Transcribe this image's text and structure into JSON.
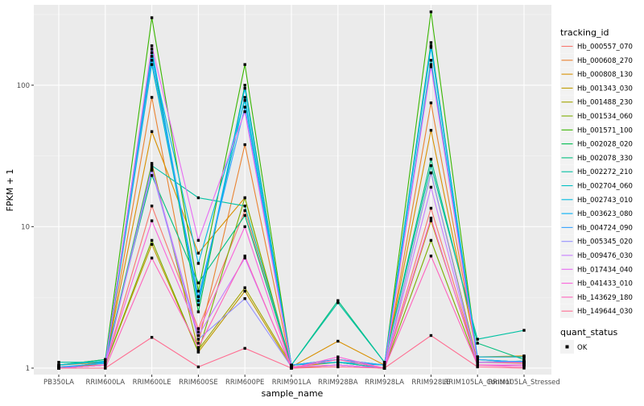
{
  "chart_data": {
    "type": "line",
    "xlabel": "sample_name",
    "ylabel": "FPKM + 1",
    "y_scale": "log10",
    "ylim": [
      0.9,
      370
    ],
    "y_ticks": [
      {
        "value": 1,
        "label": "1"
      },
      {
        "value": 10,
        "label": "10"
      },
      {
        "value": 100,
        "label": "100"
      }
    ],
    "grid": true,
    "panel_color": "#ebebeb",
    "categories": [
      "PB350LA",
      "RRIM600LA",
      "RRIM600LE",
      "RRIM600SE",
      "RRIM600PE",
      "RRIM901LA",
      "RRIM928BA",
      "RRIM928LA",
      "RRIM928LE",
      "RRIM105LA_Control",
      "RRIM105LA_Stressed"
    ],
    "legend": {
      "title": "tracking_id",
      "placement": "right",
      "quant_title": "quant_status",
      "quant_label": "OK"
    },
    "series": [
      {
        "name": "Hb_000557_070",
        "color": "#F8766D",
        "values": [
          1.0,
          1.05,
          14.0,
          1.9,
          13.0,
          1.0,
          1.05,
          1.0,
          13.5,
          1.1,
          1.08
        ]
      },
      {
        "name": "Hb_000608_270",
        "color": "#EA8331",
        "values": [
          1.02,
          1.05,
          82.0,
          1.5,
          38.0,
          1.0,
          1.05,
          1.0,
          75.0,
          1.2,
          1.2
        ]
      },
      {
        "name": "Hb_000808_130",
        "color": "#D89000",
        "values": [
          1.05,
          1.1,
          47.0,
          6.5,
          16.0,
          1.02,
          1.55,
          1.05,
          48.0,
          1.2,
          1.22
        ]
      },
      {
        "name": "Hb_001343_030",
        "color": "#C09B00",
        "values": [
          1.0,
          1.05,
          7.5,
          1.3,
          3.5,
          1.02,
          1.1,
          1.0,
          11.0,
          1.1,
          1.1
        ]
      },
      {
        "name": "Hb_001488_230",
        "color": "#A3A500",
        "values": [
          1.0,
          1.08,
          28.0,
          1.35,
          3.7,
          1.05,
          1.1,
          1.0,
          24.0,
          1.1,
          1.12
        ]
      },
      {
        "name": "Hb_001534_060",
        "color": "#7CAE00",
        "values": [
          1.0,
          1.05,
          8.0,
          1.3,
          16.0,
          1.02,
          1.05,
          1.0,
          8.0,
          1.05,
          1.05
        ]
      },
      {
        "name": "Hb_001571_100",
        "color": "#39B600",
        "values": [
          1.05,
          1.15,
          300.0,
          3.5,
          140.0,
          1.05,
          1.1,
          1.05,
          330.0,
          1.15,
          1.1
        ]
      },
      {
        "name": "Hb_002028_020",
        "color": "#00BB4E",
        "values": [
          1.0,
          1.1,
          170.0,
          2.5,
          100.0,
          1.05,
          1.15,
          1.05,
          200.0,
          1.1,
          1.1
        ]
      },
      {
        "name": "Hb_002078_330",
        "color": "#00BF7D",
        "values": [
          1.05,
          1.15,
          23.0,
          4.0,
          12.0,
          1.05,
          3.0,
          1.1,
          30.0,
          1.5,
          1.15
        ]
      },
      {
        "name": "Hb_002272_210",
        "color": "#00C1A3",
        "values": [
          1.1,
          1.1,
          27.0,
          16.0,
          14.0,
          1.05,
          2.9,
          1.1,
          27.0,
          1.6,
          1.85
        ]
      },
      {
        "name": "Hb_002704_060",
        "color": "#00BFC4",
        "values": [
          1.0,
          1.05,
          140.0,
          3.0,
          82.0,
          1.05,
          1.1,
          1.0,
          150.0,
          1.15,
          1.1
        ]
      },
      {
        "name": "Hb_002743_010",
        "color": "#00BAE0",
        "values": [
          1.05,
          1.12,
          160.0,
          5.5,
          78.0,
          1.05,
          1.1,
          1.05,
          185.0,
          1.2,
          1.2
        ]
      },
      {
        "name": "Hb_003623_080",
        "color": "#00B0F6",
        "values": [
          1.0,
          1.1,
          180.0,
          2.8,
          95.0,
          1.05,
          1.15,
          1.05,
          190.0,
          1.1,
          1.12
        ]
      },
      {
        "name": "Hb_004724_090",
        "color": "#35A2FF",
        "values": [
          1.02,
          1.08,
          150.0,
          3.2,
          70.0,
          1.05,
          1.15,
          1.05,
          140.0,
          1.15,
          1.1
        ]
      },
      {
        "name": "Hb_005345_020",
        "color": "#9590FF",
        "values": [
          1.0,
          1.05,
          25.0,
          1.6,
          3.1,
          1.02,
          1.05,
          1.0,
          24.0,
          1.05,
          1.05
        ]
      },
      {
        "name": "Hb_009476_030",
        "color": "#C77CFF",
        "values": [
          1.0,
          1.05,
          26.0,
          1.7,
          6.0,
          1.02,
          1.05,
          1.0,
          19.0,
          1.05,
          1.05
        ]
      },
      {
        "name": "Hb_017434_040",
        "color": "#E76BF3",
        "values": [
          1.0,
          1.05,
          190.0,
          8.0,
          65.0,
          1.02,
          1.05,
          1.0,
          135.0,
          1.1,
          1.1
        ]
      },
      {
        "name": "Hb_041433_010",
        "color": "#FA62DB",
        "values": [
          1.0,
          1.05,
          11.0,
          1.8,
          10.0,
          1.0,
          1.2,
          1.0,
          11.5,
          1.05,
          1.05
        ]
      },
      {
        "name": "Hb_143629_180",
        "color": "#FF62BC",
        "values": [
          1.0,
          1.0,
          6.0,
          1.4,
          6.2,
          1.0,
          1.15,
          1.0,
          6.2,
          1.05,
          1.02
        ]
      },
      {
        "name": "Hb_149644_030",
        "color": "#FF6C91",
        "values": [
          1.0,
          1.0,
          1.65,
          1.02,
          1.38,
          1.0,
          1.02,
          1.0,
          1.7,
          1.02,
          1.0
        ]
      }
    ]
  }
}
